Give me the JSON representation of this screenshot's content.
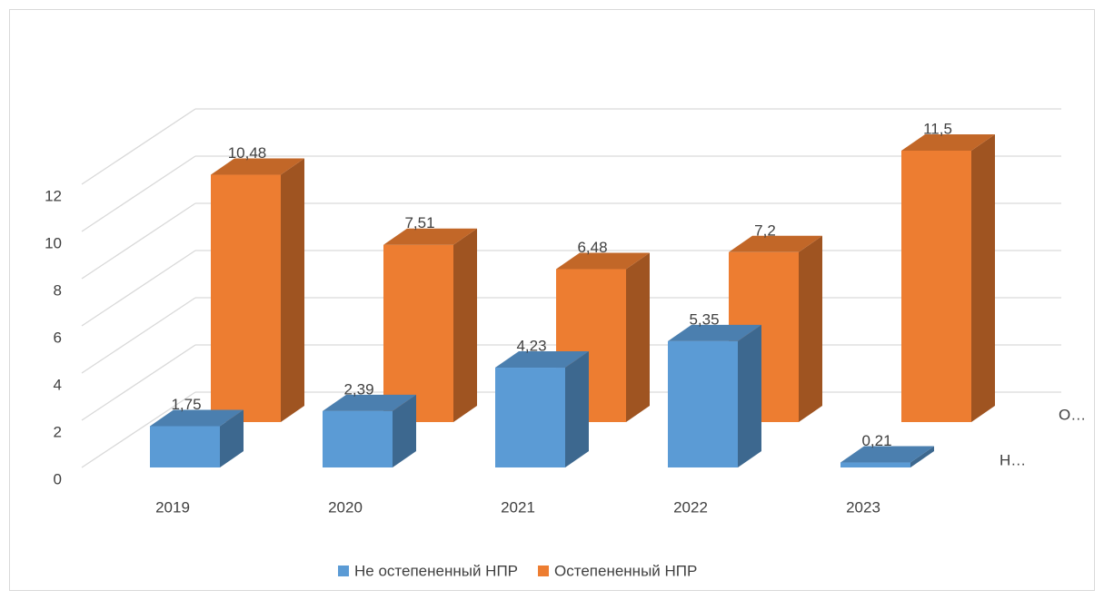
{
  "chart_data": {
    "type": "bar3d",
    "categories": [
      "2019",
      "2020",
      "2021",
      "2022",
      "2023"
    ],
    "series": [
      {
        "name": "Не остепененный НПР",
        "color": "#5b9bd5",
        "values": [
          1.75,
          2.39,
          4.23,
          5.35,
          0.21
        ],
        "value_labels": [
          "1,75",
          "2,39",
          "4,23",
          "5,35",
          "0,21"
        ]
      },
      {
        "name": "Остепененный НПР",
        "color": "#ed7d31",
        "values": [
          10.48,
          7.51,
          6.48,
          7.2,
          11.5
        ],
        "value_labels": [
          "10,48",
          "7,51",
          "6,48",
          "7,2",
          "11,5"
        ]
      }
    ],
    "series_axis_labels": [
      "Н…",
      "О…"
    ],
    "ylim": [
      0,
      12
    ],
    "yticks": [
      0,
      2,
      4,
      6,
      8,
      10,
      12
    ],
    "grid": true,
    "legend": "bottom"
  }
}
